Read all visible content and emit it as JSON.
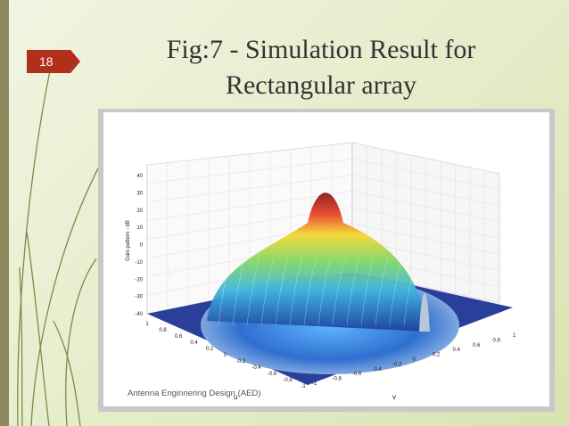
{
  "slide_number": "18",
  "title": [
    "Fig:7 - Simulation Result for",
    "Rectangular array"
  ],
  "figure": {
    "z_label": "Gain pattern - dB",
    "z_ticks": [
      "40",
      "30",
      "20",
      "10",
      "0",
      "-10",
      "-20",
      "-30",
      "-40"
    ],
    "u_ticks": [
      "1",
      "0.8",
      "0.6",
      "0.4",
      "0.2",
      "0",
      "-0.2",
      "-0.4",
      "-0.6",
      "-0.8",
      "-1"
    ],
    "v_ticks": [
      "-1",
      "-0.8",
      "-0.6",
      "-0.4",
      "-0.2",
      "0",
      "0.2",
      "0.4",
      "0.6",
      "0.8",
      "1"
    ],
    "u_label": "u",
    "v_label": "v"
  },
  "footer": "Antenna Enginnering Design (AED)"
}
